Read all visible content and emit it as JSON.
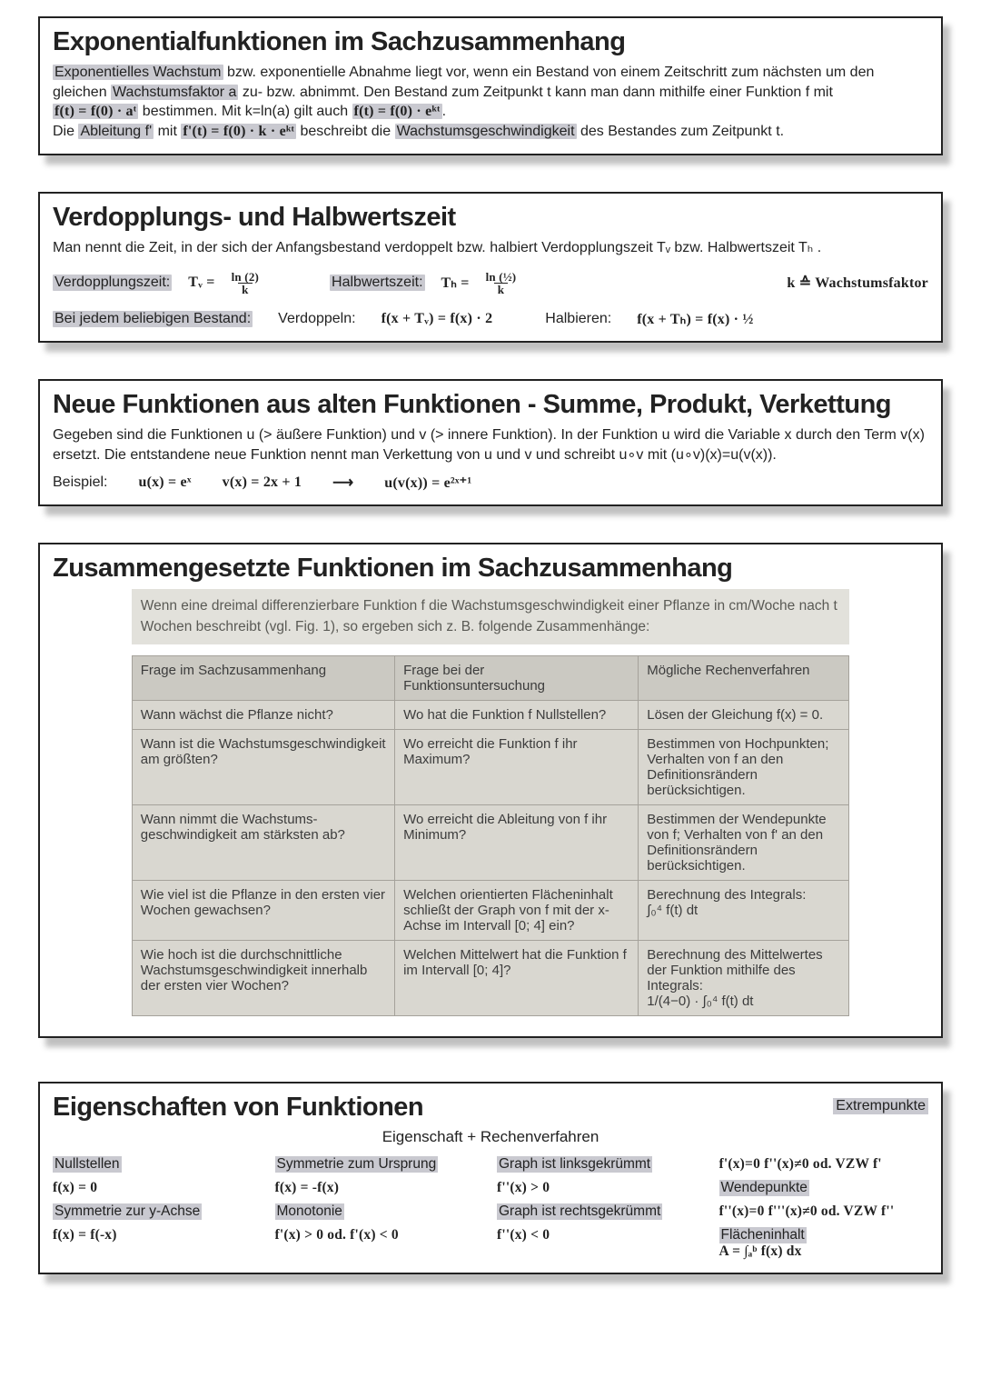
{
  "cards": {
    "exp": {
      "title": "Exponentialfunktionen im Sachzusammenhang",
      "p1a": "Exponentielles Wachstum",
      "p1b": " bzw. exponentielle Abnahme liegt vor, wenn ein Bestand von einem Zeitschritt zum nächsten um den",
      "p2a": "gleichen ",
      "p2b": "Wachstumsfaktor a",
      "p2c": " zu- bzw. abnimmt. Den Bestand zum Zeitpunkt t kann man dann mithilfe einer Funktion f mit",
      "p3a": "f(t) = f(0) · aᵗ",
      "p3b": " bestimmen. Mit k=ln(a) gilt auch ",
      "p3c": "f(t) = f(0) · eᵏᵗ",
      "p3d": ".",
      "p4a": "Die ",
      "p4b": "Ableitung f'",
      "p4c": " mit ",
      "p4d": "f'(t) = f(0) · k · eᵏᵗ",
      "p4e": " beschreibt die ",
      "p4f": "Wachstumsgeschwindigkeit",
      "p4g": " des Bestandes zum Zeitpunkt t."
    },
    "half": {
      "title": "Verdopplungs- und Halbwertszeit",
      "p1": "Man nennt die Zeit, in der sich der Anfangsbestand verdoppelt bzw. halbiert Verdopplungszeit Tᵥ bzw. Halbwertszeit Tₕ .",
      "lblV": "Verdopplungszeit:",
      "eqV1": "Tᵥ =",
      "fracVnum": "ln (2)",
      "fracVden": "k",
      "lblH": "Halbwertszeit:",
      "eqH1": "Tₕ =",
      "fracHnum": "ln (½)",
      "fracHden": "k",
      "kNote": "k ≙ Wachstumsfaktor",
      "p2lbl": "Bei jedem beliebigen Bestand:",
      "p2v": "Verdoppeln:",
      "p2veq": "f(x + Tᵥ) = f(x) · 2",
      "p2h": "Halbieren:",
      "p2heq": "f(x + Tₕ) = f(x) · ½"
    },
    "compose": {
      "title": "Neue Funktionen aus alten Funktionen - Summe, Produkt, Verkettung",
      "p1": "Gegeben sind die Funktionen u (> äußere Funktion) und v (> innere Funktion). In der Funktion u wird die Variable x durch den Term v(x) ersetzt. Die entstandene neue Funktion nennt man Verkettung von u und v und schreibt u∘v mit (u∘v)(x)=u(v(x)).",
      "exLabel": "Beispiel:",
      "ex_u": "u(x) = eˣ",
      "ex_v": "v(x) = 2x + 1",
      "arrow": "⟶",
      "ex_res": "u(v(x)) = e²ˣ⁺¹"
    },
    "context": {
      "title": "Zusammengesetzte Funktionen im Sachzusammenhang",
      "caption": "Wenn eine dreimal differenzierbare Funktion f die Wachstumsgeschwindigkeit einer Pflanze in cm/Woche nach t Wochen beschreibt (vgl. Fig. 1), so ergeben sich z. B. folgende Zusammenhänge:",
      "cols": [
        "Frage im Sachzusammenhang",
        "Frage bei der Funktionsuntersuchung",
        "Mögliche Rechenverfahren"
      ],
      "rows": [
        [
          "Wann wächst die Pflanze nicht?",
          "Wo hat die Funktion f Nullstellen?",
          "Lösen der Gleichung f(x) = 0."
        ],
        [
          "Wann ist die Wachstums­geschwindigkeit am größten?",
          "Wo erreicht die Funktion f ihr Maximum?",
          "Bestimmen von Hochpunkten; Verhalten von f an den Definitions­rändern berücksichtigen."
        ],
        [
          "Wann nimmt die Wachstums­geschwindigkeit am stärksten ab?",
          "Wo erreicht die Ableitung von f ihr Minimum?",
          "Bestimmen der Wendepunkte von f; Verhalten von f' an den Defini­tionsrändern berücksichtigen."
        ],
        [
          "Wie viel ist die Pflanze in den ersten vier Wochen gewachsen?",
          "Welchen orientierten Flächeninhalt schließt der Graph von f mit der x-Achse im Intervall [0; 4] ein?",
          "Berechnung des Integrals:\n∫₀⁴ f(t) dt"
        ],
        [
          "Wie hoch ist die durchschnittli­che Wachstumsgeschwindigkeit innerhalb der ersten vier Wo­chen?",
          "Welchen Mittelwert hat die Funktion f im Intervall [0; 4]?",
          "Berechnung des Mittelwertes der Funktion mithilfe des Integrals:\n1/(4−0) · ∫₀⁴ f(t) dt"
        ]
      ]
    },
    "props": {
      "title": "Eigenschaften von Funktionen",
      "subtitle": "Eigenschaft + Rechenverfahren",
      "nullLabel": "Nullstellen",
      "nullEq": "f(x) = 0",
      "symYLabel": "Symmetrie zur y-Achse",
      "symYEq": "f(x) = f(-x)",
      "symOLabel": "Symmetrie zum Ursprung",
      "symOEq": "f(x) = -f(x)",
      "monoLabel": "Monotonie",
      "monoEq": "f'(x) > 0 od. f'(x) < 0",
      "leftLabel": "Graph ist linksgekrümmt",
      "leftEq": "f''(x) > 0",
      "rightLabel": "Graph ist rechtsgekrümmt",
      "rightEq": "f''(x) < 0",
      "extLabel": "Extrempunkte",
      "extEq": "f'(x)=0  f''(x)≠0  od. VZW f'",
      "wpLabel": "Wendepunkte",
      "wpEq": "f''(x)=0  f'''(x)≠0  od. VZW f''",
      "areaLabel": "Flächeninhalt",
      "areaEq": "A = ∫ₐᵇ f(x) dx"
    }
  },
  "styles": {
    "border_color": "#222222",
    "highlight_bg": "#c9c9d0",
    "shadow": "8px 10px rgba(0,0,0,0.25)",
    "table_bg": "#d9d7d0",
    "table_header_bg": "#cbc9c2",
    "table_border": "#a5a29b"
  }
}
